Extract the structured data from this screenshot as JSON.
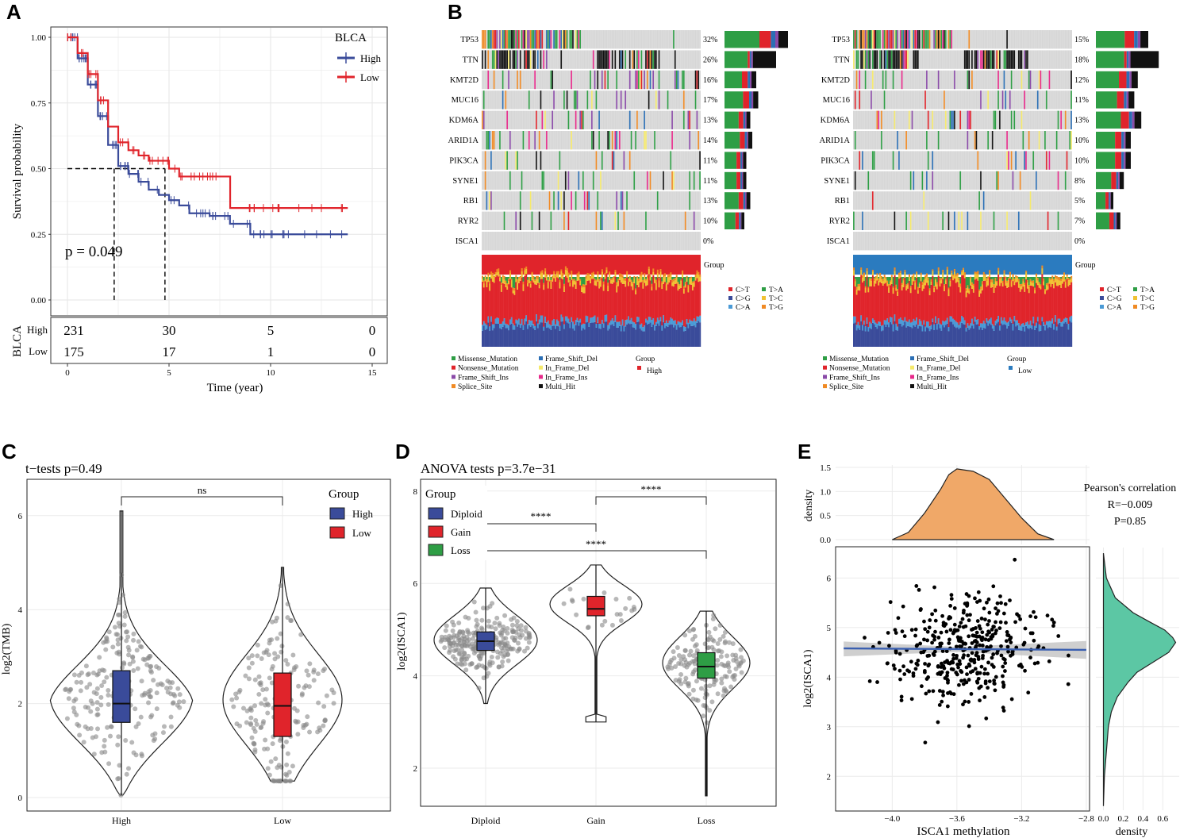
{
  "panels": {
    "A": "A",
    "B": "B",
    "C": "C",
    "D": "D",
    "E": "E"
  },
  "colors": {
    "high": "#3a4b9a",
    "low": "#e0242b",
    "green": "#2e9e45",
    "gray_cell": "#d4d4d4",
    "black": "#111111",
    "violin_line": "#222222",
    "orange_fill": "#f0a868",
    "teal_fill": "#5cc7a4",
    "fit_line": "#3a5fb0"
  },
  "chart_data": [
    {
      "id": "A",
      "type": "line",
      "subtype": "kaplan-meier",
      "legend_title": "BLCA",
      "series": [
        {
          "name": "High",
          "color": "#3a4b9a",
          "x": [
            0,
            0.5,
            1,
            1.5,
            2,
            2.5,
            3,
            3.5,
            4,
            4.5,
            5,
            5.5,
            6,
            7,
            8,
            9,
            10,
            11,
            12,
            13,
            13.8
          ],
          "y": [
            1.0,
            0.92,
            0.82,
            0.7,
            0.59,
            0.51,
            0.48,
            0.45,
            0.42,
            0.4,
            0.38,
            0.36,
            0.33,
            0.32,
            0.29,
            0.25,
            0.25,
            0.25,
            0.25,
            0.25,
            0.25
          ]
        },
        {
          "name": "Low",
          "color": "#e0242b",
          "x": [
            0,
            0.5,
            1,
            1.5,
            2,
            2.5,
            3,
            3.5,
            4,
            4.5,
            5,
            5.5,
            6,
            7,
            8,
            8.01,
            10,
            12,
            13.8
          ],
          "y": [
            1.0,
            0.94,
            0.86,
            0.76,
            0.66,
            0.6,
            0.57,
            0.55,
            0.53,
            0.53,
            0.5,
            0.47,
            0.47,
            0.47,
            0.47,
            0.35,
            0.35,
            0.35,
            0.35
          ]
        }
      ],
      "pvalue": "p = 0.049",
      "ylabel": "Survival probability",
      "xlabel": "Time (year)",
      "yticks": [
        "0.00",
        "0.25",
        "0.50",
        "0.75",
        "1.00"
      ],
      "ytick_values": [
        0,
        0.25,
        0.5,
        0.75,
        1.0
      ],
      "xticks": [
        "0",
        "5",
        "10",
        "15"
      ],
      "xtick_values": [
        0,
        5,
        10,
        15
      ],
      "median_lines": [
        2.3,
        4.8
      ],
      "risk_table": {
        "label": "BLCA",
        "rows": [
          {
            "name": "High",
            "values": [
              "231",
              "30",
              "5",
              "0"
            ]
          },
          {
            "name": "Low",
            "values": [
              "175",
              "17",
              "1",
              "0"
            ]
          }
        ]
      }
    },
    {
      "id": "B",
      "type": "heatmap",
      "subtype": "oncoplot",
      "genes": [
        "TP53",
        "TTN",
        "KMT2D",
        "MUC16",
        "KDM6A",
        "ARID1A",
        "PIK3CA",
        "SYNE1",
        "RB1",
        "RYR2",
        "ISCA1"
      ],
      "high_percents": [
        "32%",
        "26%",
        "16%",
        "17%",
        "13%",
        "14%",
        "11%",
        "11%",
        "13%",
        "10%",
        "0%"
      ],
      "low_percents": [
        "15%",
        "18%",
        "12%",
        "11%",
        "13%",
        "10%",
        "10%",
        "8%",
        "5%",
        "7%",
        "0%"
      ],
      "group_label": "Group",
      "tv_legend": [
        {
          "label": "C>T",
          "color": "#e0242b"
        },
        {
          "label": "T>A",
          "color": "#2e9e45"
        },
        {
          "label": "C>G",
          "color": "#3a4b9a"
        },
        {
          "label": "T>C",
          "color": "#f1c232"
        },
        {
          "label": "C>A",
          "color": "#4a9ad6"
        },
        {
          "label": "T>G",
          "color": "#f08a24"
        }
      ],
      "variant_legend": [
        {
          "label": "Missense_Mutation",
          "color": "#2e9e45"
        },
        {
          "label": "Frame_Shift_Del",
          "color": "#2b6fb5"
        },
        {
          "label": "Nonsense_Mutation",
          "color": "#e0242b"
        },
        {
          "label": "In_Frame_Del",
          "color": "#f5e96b"
        },
        {
          "label": "Frame_Shift_Ins",
          "color": "#8a4aa8"
        },
        {
          "label": "In_Frame_Ins",
          "color": "#e7298a"
        },
        {
          "label": "Splice_Site",
          "color": "#f08a24"
        },
        {
          "label": "Multi_Hit",
          "color": "#111111"
        }
      ],
      "group_legend_title": "Group",
      "groups": [
        {
          "name": "High",
          "color": "#e0242b"
        },
        {
          "name": "Low",
          "color": "#2b7bbf"
        }
      ]
    },
    {
      "id": "C",
      "type": "violin",
      "title": "t−tests p=0.49",
      "categories": [
        "High",
        "Low"
      ],
      "box": [
        {
          "min": 0.05,
          "q1": 1.6,
          "median": 2.0,
          "q3": 2.7,
          "max": 6.1
        },
        {
          "min": 0.35,
          "q1": 1.3,
          "median": 1.95,
          "q3": 2.65,
          "max": 4.9
        }
      ],
      "ylabel": "log2(TMB)",
      "yticks": [
        "0",
        "2",
        "4",
        "6"
      ],
      "ytick_values": [
        0,
        2,
        4,
        6
      ],
      "ylim": [
        -0.1,
        6.6
      ],
      "significance": "ns",
      "legend_title": "Group",
      "legend": [
        {
          "name": "High",
          "color": "#3a4b9a"
        },
        {
          "name": "Low",
          "color": "#e0242b"
        }
      ]
    },
    {
      "id": "D",
      "type": "violin",
      "title": "ANOVA tests p=3.7e−31",
      "categories": [
        "Diploid",
        "Gain",
        "Loss"
      ],
      "box": [
        {
          "min": 3.4,
          "q1": 4.55,
          "median": 4.75,
          "q3": 4.95,
          "max": 5.9
        },
        {
          "min": 4.7,
          "q1": 5.3,
          "median": 5.45,
          "q3": 5.72,
          "max": 6.4
        },
        {
          "min": 1.4,
          "q1": 3.95,
          "median": 4.2,
          "q3": 4.5,
          "max": 5.4
        }
      ],
      "ylabel": "log2(ISCA1)",
      "yticks": [
        "2",
        "4",
        "6",
        "8"
      ],
      "ytick_values": [
        2,
        4,
        6,
        8
      ],
      "ylim": [
        1.1,
        8.1
      ],
      "significance": [
        "****",
        "****",
        "****"
      ],
      "legend_title": "Group",
      "legend": [
        {
          "name": "Diploid",
          "color": "#3a4b9a"
        },
        {
          "name": "Gain",
          "color": "#e0242b"
        },
        {
          "name": "Loss",
          "color": "#2e9e45"
        }
      ]
    },
    {
      "id": "E",
      "type": "scatter",
      "xlabel": "ISCA1 methylation",
      "ylabel": "log2(ISCA1)",
      "xticks": [
        "−4.0",
        "−3.6",
        "−3.2",
        "−2.8"
      ],
      "xtick_values": [
        -4.0,
        -3.6,
        -3.2,
        -2.8
      ],
      "yticks": [
        "2",
        "3",
        "4",
        "5",
        "6"
      ],
      "ytick_values": [
        2,
        3,
        4,
        5,
        6
      ],
      "xlim": [
        -4.35,
        -2.78
      ],
      "ylim": [
        1.3,
        6.55
      ],
      "fit": {
        "x": [
          -4.3,
          -2.8
        ],
        "y": [
          4.58,
          4.55
        ]
      },
      "annotation": {
        "title": "Pearson's correlation",
        "r": "R=−0.009",
        "p": "P=0.85"
      },
      "top_density": {
        "label": "density",
        "yticks": [
          "0.0",
          "0.5",
          "1.0",
          "1.5"
        ],
        "ytick_values": [
          0,
          0.5,
          1.0,
          1.5
        ],
        "ylim": [
          0,
          1.55
        ],
        "x": [
          -4.0,
          -3.9,
          -3.8,
          -3.7,
          -3.65,
          -3.6,
          -3.5,
          -3.4,
          -3.3,
          -3.2,
          -3.1,
          -3.0
        ],
        "y": [
          0.0,
          0.15,
          0.55,
          1.05,
          1.35,
          1.47,
          1.42,
          1.25,
          0.85,
          0.45,
          0.12,
          0.0
        ]
      },
      "right_density": {
        "label": "density",
        "xticks": [
          "0.0",
          "0.2",
          "0.4",
          "0.6"
        ],
        "xtick_values": [
          0,
          0.2,
          0.4,
          0.6
        ],
        "xlim": [
          -0.02,
          0.75
        ],
        "y": [
          1.4,
          2.0,
          2.5,
          3.0,
          3.3,
          3.6,
          3.9,
          4.1,
          4.3,
          4.5,
          4.7,
          4.8,
          4.95,
          5.1,
          5.3,
          5.6,
          6.0,
          6.5
        ],
        "x": [
          0,
          0.01,
          0.03,
          0.05,
          0.08,
          0.14,
          0.25,
          0.34,
          0.5,
          0.66,
          0.73,
          0.7,
          0.62,
          0.48,
          0.3,
          0.12,
          0.03,
          0
        ]
      },
      "n_points": 400
    }
  ]
}
